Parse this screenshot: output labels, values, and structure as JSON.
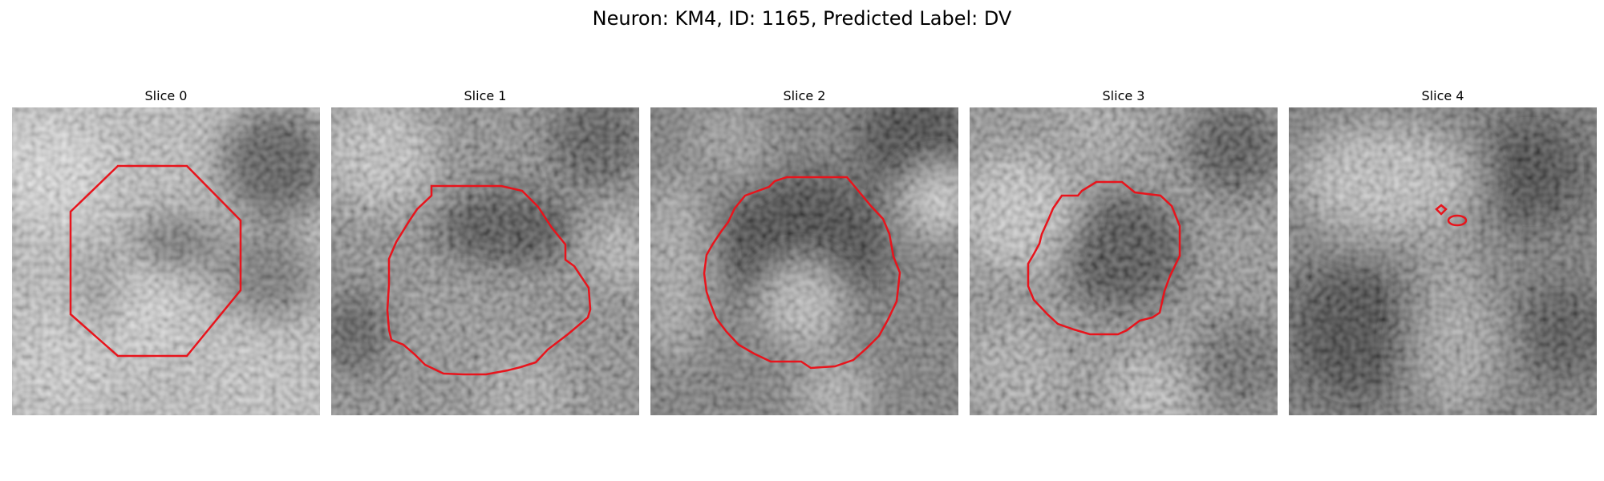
{
  "figure": {
    "title": "Neuron: KM4, ID: 1165, Predicted Label: DV"
  },
  "panels": [
    {
      "title": "Slice 0",
      "contour": "octagon"
    },
    {
      "title": "Slice 1",
      "contour": "irregular"
    },
    {
      "title": "Slice 2",
      "contour": "irregular"
    },
    {
      "title": "Slice 3",
      "contour": "irregular"
    },
    {
      "title": "Slice 4",
      "contour": "two-small-loops"
    }
  ],
  "colors": {
    "contour": "#e8141c",
    "background": "#ffffff",
    "colormap": "gray"
  }
}
